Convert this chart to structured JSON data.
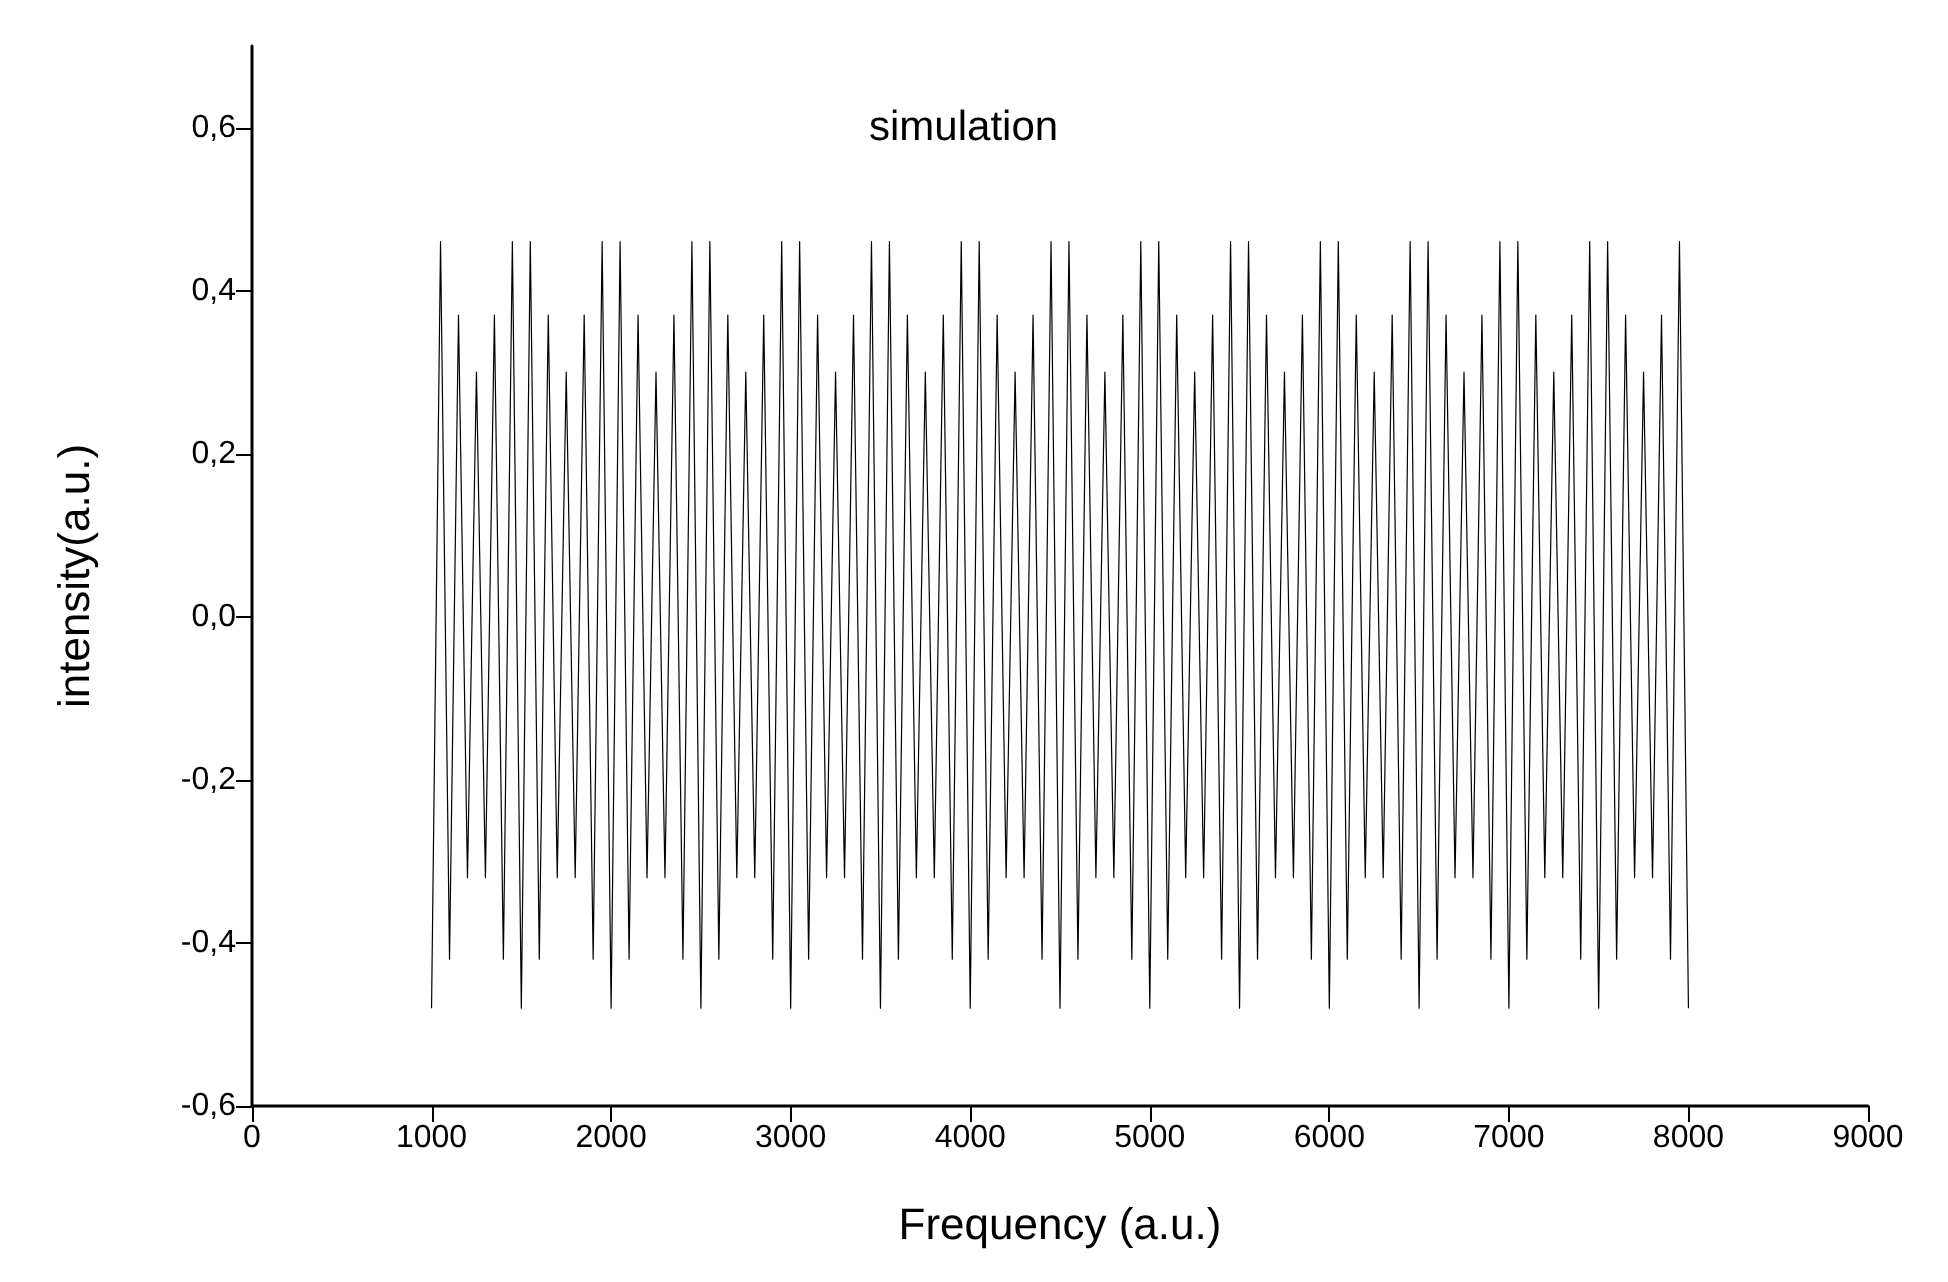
{
  "chart_data": {
    "type": "line",
    "title": "simulation",
    "xlabel": "Frequency (a.u.)",
    "ylabel": "intensity(a.u.)",
    "xlim": [
      0,
      9000
    ],
    "ylim": [
      -0.6,
      0.7
    ],
    "xticks": [
      0,
      1000,
      2000,
      3000,
      4000,
      5000,
      6000,
      7000,
      8000,
      9000
    ],
    "yticks": [
      {
        "value": -0.6,
        "label": "-0,6"
      },
      {
        "value": -0.4,
        "label": "-0,4"
      },
      {
        "value": -0.2,
        "label": "-0,2"
      },
      {
        "value": 0,
        "label": "0,0"
      },
      {
        "value": 0.2,
        "label": "0,2"
      },
      {
        "value": 0.4,
        "label": "0,4"
      },
      {
        "value": 0.6,
        "label": "0,6"
      }
    ],
    "grid": false,
    "marker": "none",
    "line_style": "solid",
    "series": [
      {
        "color": "#000000",
        "x": [
          1000,
          1050,
          1100,
          1150,
          1200,
          1250,
          1300,
          1350,
          1400,
          1450,
          1500,
          1550,
          1600,
          1650,
          1700,
          1750,
          1800,
          1850,
          1900,
          1950,
          2000,
          2050,
          2100,
          2150,
          2200,
          2250,
          2300,
          2350,
          2400,
          2450,
          2500,
          2550,
          2600,
          2650,
          2700,
          2750,
          2800,
          2850,
          2900,
          2950,
          3000,
          3050,
          3100,
          3150,
          3200,
          3250,
          3300,
          3350,
          3400,
          3450,
          3500,
          3550,
          3600,
          3650,
          3700,
          3750,
          3800,
          3850,
          3900,
          3950,
          4000,
          4050,
          4100,
          4150,
          4200,
          4250,
          4300,
          4350,
          4400,
          4450,
          4500,
          4550,
          4600,
          4650,
          4700,
          4750,
          4800,
          4850,
          4900,
          4950,
          5000,
          5050,
          5100,
          5150,
          5200,
          5250,
          5300,
          5350,
          5400,
          5450,
          5500,
          5550,
          5600,
          5650,
          5700,
          5750,
          5800,
          5850,
          5900,
          5950,
          6000,
          6050,
          6100,
          6150,
          6200,
          6250,
          6300,
          6350,
          6400,
          6450,
          6500,
          6550,
          6600,
          6650,
          6700,
          6750,
          6800,
          6850,
          6900,
          6950,
          7000,
          7050,
          7100,
          7150,
          7200,
          7250,
          7300,
          7350,
          7400,
          7450,
          7500,
          7550,
          7600,
          7650,
          7700,
          7750,
          7800,
          7850,
          7900,
          7950,
          8000
        ],
        "values": [
          -0.48,
          0.46,
          -0.42,
          0.37,
          -0.32,
          0.3,
          -0.32,
          0.37,
          -0.42,
          0.46,
          -0.48,
          0.46,
          -0.42,
          0.37,
          -0.32,
          0.3,
          -0.32,
          0.37,
          -0.42,
          0.46,
          -0.48,
          0.46,
          -0.42,
          0.37,
          -0.32,
          0.3,
          -0.32,
          0.37,
          -0.42,
          0.46,
          -0.48,
          0.46,
          -0.42,
          0.37,
          -0.32,
          0.3,
          -0.32,
          0.37,
          -0.42,
          0.46,
          -0.48,
          0.46,
          -0.42,
          0.37,
          -0.32,
          0.3,
          -0.32,
          0.37,
          -0.42,
          0.46,
          -0.48,
          0.46,
          -0.42,
          0.37,
          -0.32,
          0.3,
          -0.32,
          0.37,
          -0.42,
          0.46,
          -0.48,
          0.46,
          -0.42,
          0.37,
          -0.32,
          0.3,
          -0.32,
          0.37,
          -0.42,
          0.46,
          -0.48,
          0.46,
          -0.42,
          0.37,
          -0.32,
          0.3,
          -0.32,
          0.37,
          -0.42,
          0.46,
          -0.48,
          0.46,
          -0.42,
          0.37,
          -0.32,
          0.3,
          -0.32,
          0.37,
          -0.42,
          0.46,
          -0.48,
          0.46,
          -0.42,
          0.37,
          -0.32,
          0.3,
          -0.32,
          0.37,
          -0.42,
          0.46,
          -0.48,
          0.46,
          -0.42,
          0.37,
          -0.32,
          0.3,
          -0.32,
          0.37,
          -0.42,
          0.46,
          -0.48,
          0.46,
          -0.42,
          0.37,
          -0.32,
          0.3,
          -0.32,
          0.37,
          -0.42,
          0.46,
          -0.48,
          0.46,
          -0.42,
          0.37,
          -0.32,
          0.3,
          -0.32,
          0.37,
          -0.42,
          0.46,
          -0.48,
          0.46,
          -0.42,
          0.37,
          -0.32,
          0.3,
          -0.32,
          0.37,
          -0.42,
          0.46,
          -0.48
        ]
      }
    ]
  }
}
